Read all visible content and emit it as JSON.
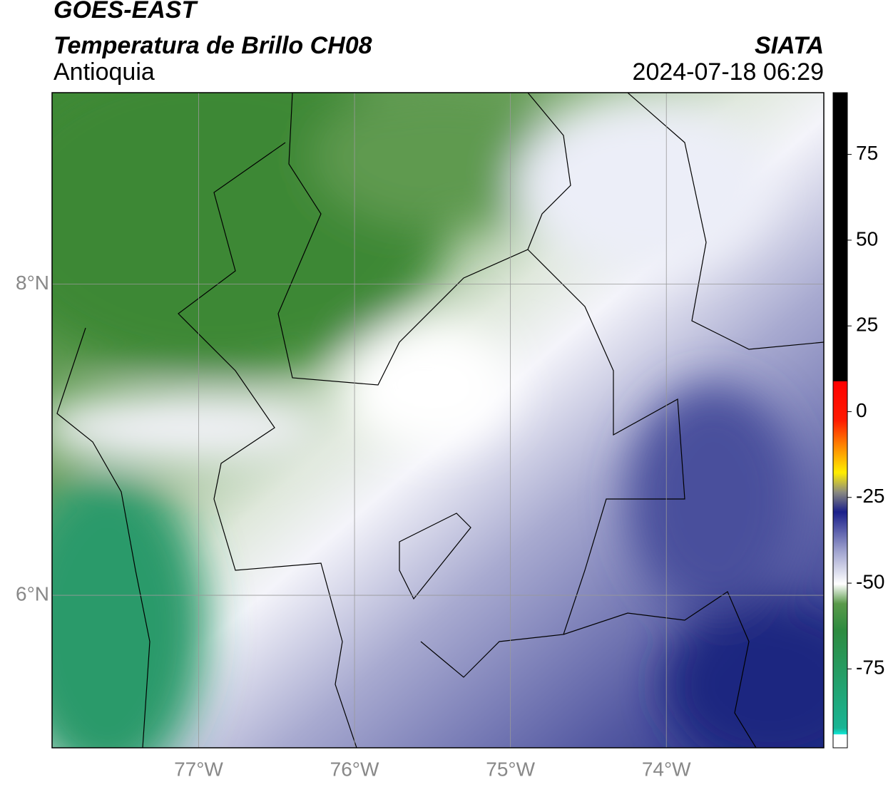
{
  "header": {
    "title": "GOES-EAST",
    "subtitle": "Temperatura de Brillo CH08",
    "region": "Antioquia",
    "source": "SIATA",
    "datetime": "2024-07-18 06:29"
  },
  "map": {
    "lonlim": [
      -77.94,
      -72.99
    ],
    "latlim": [
      5.02,
      9.23
    ],
    "lon_ticks": [
      {
        "value": -77,
        "label": "77°W"
      },
      {
        "value": -76,
        "label": "76°W"
      },
      {
        "value": -75,
        "label": "75°W"
      },
      {
        "value": -74,
        "label": "74°W"
      }
    ],
    "lat_ticks": [
      {
        "value": 8,
        "label": "8°N"
      },
      {
        "value": 6,
        "label": "6°N"
      }
    ]
  },
  "colorbar": {
    "lim": [
      -98,
      93
    ],
    "ticks": [
      -75,
      -50,
      -25,
      0,
      25,
      50,
      75
    ]
  }
}
